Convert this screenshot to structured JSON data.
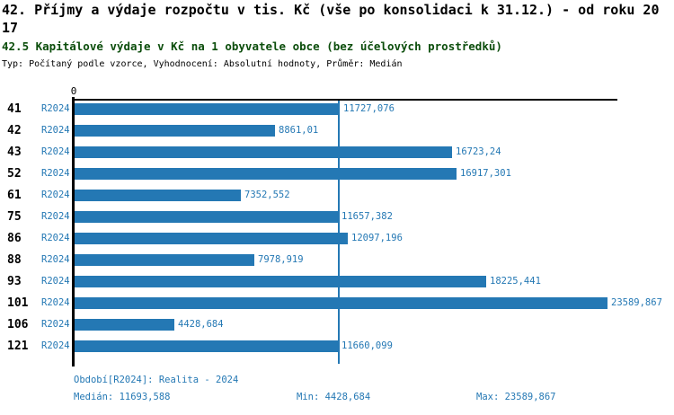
{
  "colors": {
    "bar_blue": "#2478b4",
    "title_green": "#0b4d0b"
  },
  "header": {
    "title_line1": "42. Příjmy a výdaje rozpočtu v tis. Kč (vše po konsolidaci k 31.12.) - od roku 20",
    "title_line2": "17",
    "subtitle": "42.5 Kapitálové výdaje v Kč na 1 obyvatele obce (bez účelových prostředků)",
    "meta": "Typ: Počítaný podle vzorce, Vyhodnocení: Absolutní hodnoty, Průměr: Medián"
  },
  "chart_data": {
    "type": "bar",
    "orientation": "horizontal",
    "title": "42.5 Kapitálové výdaje v Kč na 1 obyvatele obce (bez účelových prostředků)",
    "categories": [
      "41",
      "42",
      "43",
      "52",
      "61",
      "75",
      "86",
      "88",
      "93",
      "101",
      "106",
      "121"
    ],
    "series": [
      {
        "name": "R2024",
        "values": [
          11727.076,
          8861.01,
          16723.24,
          16917.301,
          7352.552,
          11657.382,
          12097.196,
          7978.919,
          18225.441,
          23589.867,
          4428.684,
          11660.099
        ],
        "value_labels": [
          "11727,076",
          "8861,01",
          "16723,24",
          "16917,301",
          "7352,552",
          "11657,382",
          "12097,196",
          "7978,919",
          "18225,441",
          "23589,867",
          "4428,684",
          "11660,099"
        ]
      }
    ],
    "xlim": [
      0,
      24000
    ],
    "x_zero_tick": "0",
    "grid": false,
    "legend_position": "none",
    "median_line_value": 11693.588,
    "median": 11693.588,
    "min": 4428.684,
    "max": 23589.867
  },
  "footer": {
    "period": "Období[R2024]: Realita - 2024",
    "median": "Medián: 11693,588",
    "min": "Min: 4428,684",
    "max": "Max: 23589,867"
  }
}
